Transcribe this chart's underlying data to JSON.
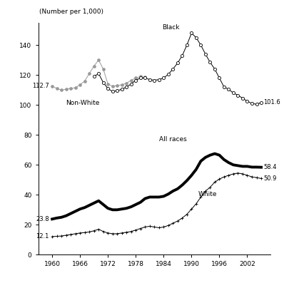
{
  "title_ylabel": "(Number per 1,000)",
  "xlim": [
    1957,
    2007
  ],
  "ylim": [
    0,
    155
  ],
  "yticks": [
    0,
    20,
    40,
    60,
    80,
    100,
    120,
    140
  ],
  "xticks": [
    1960,
    1966,
    1972,
    1978,
    1984,
    1990,
    1996,
    2002
  ],
  "nonwhite_years": [
    1960,
    1961,
    1962,
    1963,
    1964,
    1965,
    1966,
    1967,
    1968,
    1969,
    1970,
    1971,
    1972,
    1973,
    1974,
    1975,
    1976,
    1977,
    1978,
    1979,
    1980
  ],
  "nonwhite_values": [
    112.7,
    111.0,
    110.0,
    110.5,
    111.0,
    111.5,
    113.5,
    116.0,
    121.0,
    126.0,
    130.0,
    124.0,
    114.0,
    112.5,
    113.0,
    113.5,
    114.5,
    116.5,
    118.0,
    119.0,
    118.5
  ],
  "black_years": [
    1969,
    1970,
    1971,
    1972,
    1973,
    1974,
    1975,
    1976,
    1977,
    1978,
    1979,
    1980,
    1981,
    1982,
    1983,
    1984,
    1985,
    1986,
    1987,
    1988,
    1989,
    1990,
    1991,
    1992,
    1993,
    1994,
    1995,
    1996,
    1997,
    1998,
    1999,
    2000,
    2001,
    2002,
    2003,
    2004,
    2005
  ],
  "black_values": [
    119.0,
    121.0,
    115.0,
    111.0,
    109.0,
    109.5,
    110.5,
    112.0,
    114.0,
    116.5,
    118.0,
    118.0,
    117.0,
    116.5,
    117.0,
    118.0,
    120.5,
    124.0,
    128.0,
    133.0,
    140.0,
    148.0,
    145.0,
    140.0,
    134.0,
    128.5,
    124.0,
    118.0,
    112.0,
    110.5,
    108.0,
    106.5,
    104.5,
    102.5,
    101.0,
    100.5,
    101.6
  ],
  "allraces_years": [
    1960,
    1961,
    1962,
    1963,
    1964,
    1965,
    1966,
    1967,
    1968,
    1969,
    1970,
    1971,
    1972,
    1973,
    1974,
    1975,
    1976,
    1977,
    1978,
    1979,
    1980,
    1981,
    1982,
    1983,
    1984,
    1985,
    1986,
    1987,
    1988,
    1989,
    1990,
    1991,
    1992,
    1993,
    1994,
    1995,
    1996,
    1997,
    1998,
    1999,
    2000,
    2001,
    2002,
    2003,
    2004,
    2005
  ],
  "allraces_values": [
    23.8,
    24.5,
    25.0,
    26.0,
    27.5,
    29.0,
    30.5,
    31.5,
    33.0,
    34.5,
    36.0,
    33.5,
    31.0,
    30.0,
    30.0,
    30.5,
    31.0,
    32.0,
    33.5,
    35.0,
    37.5,
    38.5,
    38.5,
    38.5,
    39.0,
    40.5,
    42.5,
    44.0,
    46.5,
    49.5,
    53.0,
    57.0,
    62.5,
    65.0,
    66.5,
    67.5,
    66.5,
    63.5,
    61.5,
    60.0,
    59.5,
    59.0,
    59.0,
    58.5,
    58.5,
    58.4
  ],
  "white_years": [
    1960,
    1961,
    1962,
    1963,
    1964,
    1965,
    1966,
    1967,
    1968,
    1969,
    1970,
    1971,
    1972,
    1973,
    1974,
    1975,
    1976,
    1977,
    1978,
    1979,
    1980,
    1981,
    1982,
    1983,
    1984,
    1985,
    1986,
    1987,
    1988,
    1989,
    1990,
    1991,
    1992,
    1993,
    1994,
    1995,
    1996,
    1997,
    1998,
    1999,
    2000,
    2001,
    2002,
    2003,
    2004,
    2005
  ],
  "white_values": [
    12.1,
    12.3,
    12.5,
    13.0,
    13.5,
    14.0,
    14.5,
    14.8,
    15.2,
    16.0,
    17.0,
    15.5,
    14.5,
    14.0,
    14.0,
    14.5,
    15.0,
    15.5,
    16.5,
    17.5,
    18.5,
    19.0,
    18.5,
    18.0,
    18.5,
    19.5,
    21.0,
    22.5,
    24.5,
    27.0,
    30.5,
    34.0,
    38.5,
    42.5,
    45.0,
    48.5,
    50.5,
    52.0,
    53.0,
    54.0,
    54.5,
    54.0,
    53.0,
    52.0,
    51.5,
    50.9
  ]
}
